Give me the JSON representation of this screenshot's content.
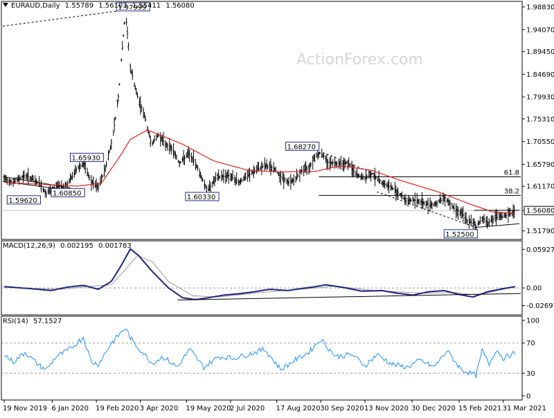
{
  "header": {
    "main": {
      "symbol": "EURAUD,Daily",
      "open": "1.55789",
      "high": "1.56103",
      "low": "1.55411",
      "close": "1.56080"
    },
    "macd": {
      "label": "MACD(12,26,9)",
      "v1": "0.002195",
      "v2": "0.001783"
    },
    "rsi": {
      "label": "RSI(14)",
      "value": "57.1527"
    }
  },
  "watermark": "ActionForex.com",
  "price_axis_labels": [
    "1.98830",
    "1.94070",
    "1.89450",
    "1.84690",
    "1.79930",
    "1.75310",
    "1.70550",
    "1.65790",
    "1.61170",
    "1.56080",
    "1.51790"
  ],
  "macd_axis_labels": [
    "0.059272",
    "0.00",
    "-0.026978"
  ],
  "rsi_axis_labels": [
    "100",
    "70",
    "30",
    "0"
  ],
  "x_labels": [
    "19 Nov 2019",
    "6 Jan 2020",
    "19 Feb 2020",
    "3 Apr 2020",
    "19 May 2020",
    "2 Jul 2020",
    "17 Aug 2020",
    "30 Sep 2020",
    "13 Nov 2020",
    "30 Dec 2020",
    "15 Feb 2021",
    "31 Mar 2021"
  ],
  "price_annotations": [
    "1.97999",
    "1.65930",
    "1.60850",
    "1.59620",
    "1.60330",
    "1.68270",
    "1.52500"
  ],
  "fib_labels": [
    "61.8",
    "38.2"
  ],
  "chart_data": {
    "type": "line",
    "title": "EURAUD,Daily",
    "x_start": "2019-11-19",
    "x_end": "2021-04-12",
    "price_range": [
      1.5,
      2.0
    ],
    "close_keypoints": [
      [
        "2019-11-19",
        1.628
      ],
      [
        "2019-11-28",
        1.62
      ],
      [
        "2019-12-10",
        1.635
      ],
      [
        "2019-12-24",
        1.618
      ],
      [
        "2019-12-31",
        1.596
      ],
      [
        "2020-01-10",
        1.612
      ],
      [
        "2020-01-17",
        1.6085
      ],
      [
        "2020-01-24",
        1.625
      ],
      [
        "2020-01-31",
        1.65
      ],
      [
        "2020-02-06",
        1.6593
      ],
      [
        "2020-02-14",
        1.62
      ],
      [
        "2020-02-21",
        1.6085
      ],
      [
        "2020-02-28",
        1.65
      ],
      [
        "2020-03-06",
        1.71
      ],
      [
        "2020-03-12",
        1.8
      ],
      [
        "2020-03-19",
        1.9799
      ],
      [
        "2020-03-24",
        1.86
      ],
      [
        "2020-03-31",
        1.8
      ],
      [
        "2020-04-07",
        1.76
      ],
      [
        "2020-04-14",
        1.7
      ],
      [
        "2020-04-21",
        1.72
      ],
      [
        "2020-04-28",
        1.7
      ],
      [
        "2020-05-05",
        1.69
      ],
      [
        "2020-05-12",
        1.66
      ],
      [
        "2020-05-21",
        1.68
      ],
      [
        "2020-05-28",
        1.66
      ],
      [
        "2020-06-04",
        1.625
      ],
      [
        "2020-06-09",
        1.6033
      ],
      [
        "2020-06-18",
        1.63
      ],
      [
        "2020-06-30",
        1.635
      ],
      [
        "2020-07-10",
        1.62
      ],
      [
        "2020-07-23",
        1.64
      ],
      [
        "2020-08-04",
        1.655
      ],
      [
        "2020-08-14",
        1.65
      ],
      [
        "2020-08-21",
        1.632
      ],
      [
        "2020-08-28",
        1.62
      ],
      [
        "2020-09-04",
        1.625
      ],
      [
        "2020-09-11",
        1.645
      ],
      [
        "2020-09-18",
        1.65
      ],
      [
        "2020-09-24",
        1.675
      ],
      [
        "2020-09-30",
        1.6827
      ],
      [
        "2020-10-07",
        1.662
      ],
      [
        "2020-10-16",
        1.66
      ],
      [
        "2020-10-27",
        1.66
      ],
      [
        "2020-11-05",
        1.635
      ],
      [
        "2020-11-13",
        1.628
      ],
      [
        "2020-11-20",
        1.638
      ],
      [
        "2020-11-27",
        1.625
      ],
      [
        "2020-12-04",
        1.614
      ],
      [
        "2020-12-11",
        1.607
      ],
      [
        "2020-12-18",
        1.595
      ],
      [
        "2020-12-25",
        1.58
      ],
      [
        "2020-12-31",
        1.583
      ],
      [
        "2021-01-07",
        1.58
      ],
      [
        "2021-01-14",
        1.574
      ],
      [
        "2021-01-22",
        1.574
      ],
      [
        "2021-02-01",
        1.588
      ],
      [
        "2021-02-10",
        1.565
      ],
      [
        "2021-02-17",
        1.556
      ],
      [
        "2021-02-24",
        1.537
      ],
      [
        "2021-03-02",
        1.535
      ],
      [
        "2021-03-04",
        1.525
      ],
      [
        "2021-03-10",
        1.545
      ],
      [
        "2021-03-16",
        1.535
      ],
      [
        "2021-03-22",
        1.545
      ],
      [
        "2021-03-29",
        1.548
      ],
      [
        "2021-04-05",
        1.552
      ],
      [
        "2021-04-12",
        1.5608
      ]
    ],
    "ma_keypoints": [
      [
        "2019-11-19",
        1.62
      ],
      [
        "2019-12-31",
        1.615
      ],
      [
        "2020-01-31",
        1.612
      ],
      [
        "2020-02-24",
        1.618
      ],
      [
        "2020-03-12",
        1.67
      ],
      [
        "2020-03-24",
        1.71
      ],
      [
        "2020-04-10",
        1.73
      ],
      [
        "2020-05-15",
        1.7
      ],
      [
        "2020-06-15",
        1.665
      ],
      [
        "2020-07-20",
        1.645
      ],
      [
        "2020-08-20",
        1.642
      ],
      [
        "2020-09-25",
        1.643
      ],
      [
        "2020-10-20",
        1.655
      ],
      [
        "2020-11-20",
        1.645
      ],
      [
        "2020-12-20",
        1.623
      ],
      [
        "2021-01-25",
        1.6
      ],
      [
        "2021-02-25",
        1.575
      ],
      [
        "2021-03-20",
        1.558
      ],
      [
        "2021-04-12",
        1.555
      ]
    ],
    "horizontal_levels": [
      1.5608
    ],
    "fib_levels": [
      {
        "label": "61.8",
        "value": 1.6315
      },
      {
        "label": "38.2",
        "value": 1.5925
      }
    ],
    "macd_keypoints": [
      [
        "2019-11-19",
        0.002
      ],
      [
        "2019-12-15",
        -0.001
      ],
      [
        "2020-01-05",
        -0.004
      ],
      [
        "2020-01-20",
        0.001
      ],
      [
        "2020-02-06",
        0.004
      ],
      [
        "2020-02-21",
        -0.002
      ],
      [
        "2020-03-05",
        0.01
      ],
      [
        "2020-03-15",
        0.035
      ],
      [
        "2020-03-24",
        0.06
      ],
      [
        "2020-04-01",
        0.05
      ],
      [
        "2020-04-15",
        0.025
      ],
      [
        "2020-05-01",
        0.0
      ],
      [
        "2020-05-15",
        -0.015
      ],
      [
        "2020-05-28",
        -0.018
      ],
      [
        "2020-06-10",
        -0.015
      ],
      [
        "2020-06-25",
        -0.011
      ],
      [
        "2020-07-10",
        -0.009
      ],
      [
        "2020-07-25",
        -0.006
      ],
      [
        "2020-08-10",
        -0.002
      ],
      [
        "2020-08-28",
        -0.004
      ],
      [
        "2020-09-10",
        -0.001
      ],
      [
        "2020-09-25",
        0.002
      ],
      [
        "2020-10-05",
        0.005
      ],
      [
        "2020-10-25",
        0.0
      ],
      [
        "2020-11-10",
        -0.005
      ],
      [
        "2020-11-30",
        -0.004
      ],
      [
        "2020-12-15",
        -0.008
      ],
      [
        "2020-12-31",
        -0.011
      ],
      [
        "2021-01-15",
        -0.006
      ],
      [
        "2021-01-31",
        -0.004
      ],
      [
        "2021-02-15",
        -0.01
      ],
      [
        "2021-03-01",
        -0.014
      ],
      [
        "2021-03-15",
        -0.006
      ],
      [
        "2021-03-31",
        -0.001
      ],
      [
        "2021-04-12",
        0.002
      ]
    ],
    "macd_signal_keypoints": [
      [
        "2019-11-19",
        0.001
      ],
      [
        "2019-12-20",
        -0.001
      ],
      [
        "2020-01-15",
        -0.002
      ],
      [
        "2020-02-10",
        0.002
      ],
      [
        "2020-03-05",
        0.005
      ],
      [
        "2020-03-20",
        0.03
      ],
      [
        "2020-03-31",
        0.05
      ],
      [
        "2020-04-15",
        0.04
      ],
      [
        "2020-05-01",
        0.01
      ],
      [
        "2020-05-25",
        -0.012
      ],
      [
        "2020-06-20",
        -0.014
      ],
      [
        "2020-07-25",
        -0.008
      ],
      [
        "2020-08-25",
        -0.004
      ],
      [
        "2020-09-25",
        0.0
      ],
      [
        "2020-10-15",
        0.003
      ],
      [
        "2020-11-15",
        -0.003
      ],
      [
        "2020-12-15",
        -0.006
      ],
      [
        "2021-01-10",
        -0.008
      ],
      [
        "2021-02-10",
        -0.007
      ],
      [
        "2021-03-05",
        -0.011
      ],
      [
        "2021-03-25",
        -0.004
      ],
      [
        "2021-04-12",
        0.0018
      ]
    ],
    "macd_range": [
      -0.035,
      0.066
    ],
    "rsi_keypoints": [
      [
        "2019-11-19",
        55
      ],
      [
        "2019-11-28",
        45
      ],
      [
        "2019-12-10",
        58
      ],
      [
        "2019-12-24",
        40
      ],
      [
        "2019-12-31",
        35
      ],
      [
        "2020-01-10",
        52
      ],
      [
        "2020-01-24",
        62
      ],
      [
        "2020-02-06",
        78
      ],
      [
        "2020-02-14",
        45
      ],
      [
        "2020-02-21",
        42
      ],
      [
        "2020-03-05",
        70
      ],
      [
        "2020-03-19",
        90
      ],
      [
        "2020-03-26",
        72
      ],
      [
        "2020-04-07",
        55
      ],
      [
        "2020-04-15",
        43
      ],
      [
        "2020-04-25",
        52
      ],
      [
        "2020-05-10",
        38
      ],
      [
        "2020-05-22",
        62
      ],
      [
        "2020-06-05",
        38
      ],
      [
        "2020-06-20",
        52
      ],
      [
        "2020-07-05",
        50
      ],
      [
        "2020-07-20",
        55
      ],
      [
        "2020-08-05",
        62
      ],
      [
        "2020-08-21",
        35
      ],
      [
        "2020-09-05",
        48
      ],
      [
        "2020-09-18",
        58
      ],
      [
        "2020-09-30",
        75
      ],
      [
        "2020-10-15",
        52
      ],
      [
        "2020-10-31",
        55
      ],
      [
        "2020-11-13",
        40
      ],
      [
        "2020-11-25",
        55
      ],
      [
        "2020-12-10",
        42
      ],
      [
        "2020-12-25",
        38
      ],
      [
        "2021-01-07",
        47
      ],
      [
        "2021-01-21",
        38
      ],
      [
        "2021-02-03",
        60
      ],
      [
        "2021-02-17",
        35
      ],
      [
        "2021-03-04",
        27
      ],
      [
        "2021-03-10",
        60
      ],
      [
        "2021-03-17",
        42
      ],
      [
        "2021-03-24",
        62
      ],
      [
        "2021-03-31",
        50
      ],
      [
        "2021-04-12",
        57
      ]
    ],
    "rsi_levels": [
      70,
      30
    ]
  }
}
